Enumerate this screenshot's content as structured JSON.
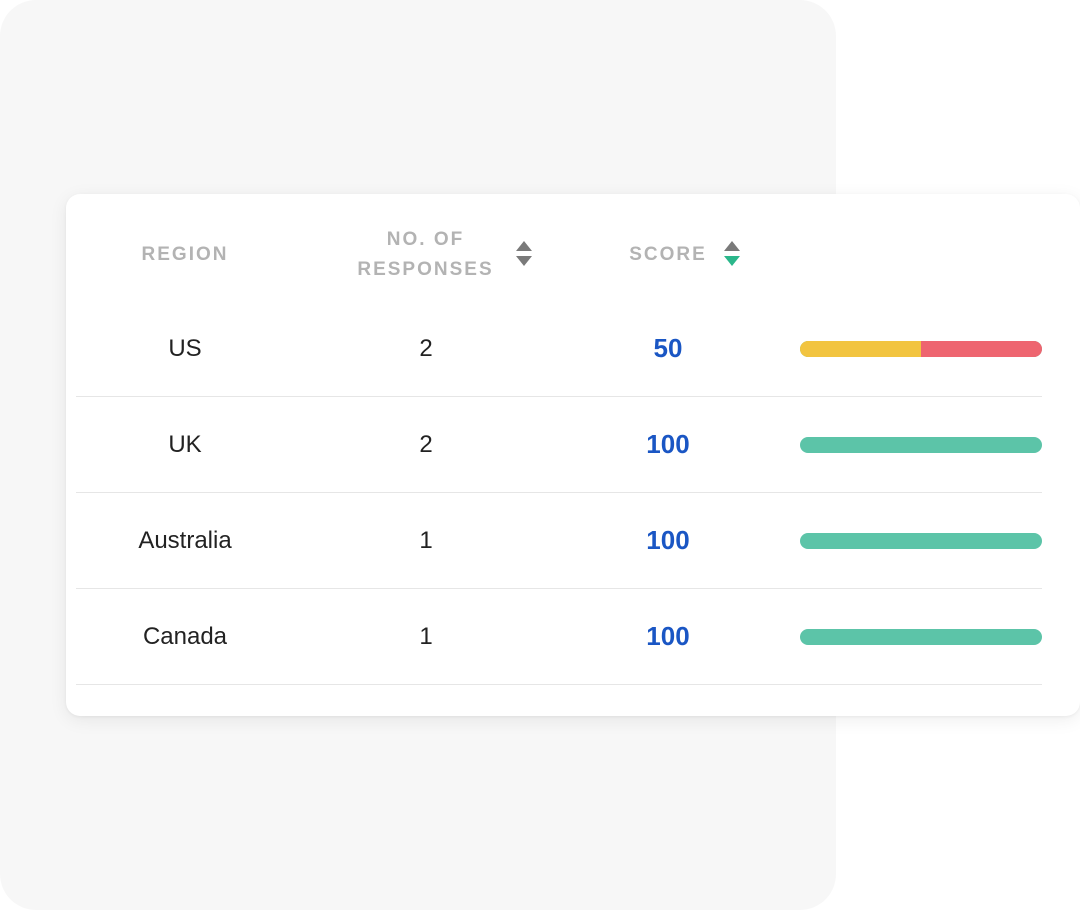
{
  "colors": {
    "score_text": "#1a56c4",
    "positive": "#5cc4a8",
    "neutral": "#f2c440",
    "negative": "#ee6570",
    "sort_active": "#2bb78b"
  },
  "table": {
    "columns": {
      "region": "REGION",
      "responses_line1": "NO. OF",
      "responses_line2": "RESPONSES",
      "score": "SCORE"
    },
    "sort": {
      "responses_icon": "sort-icon",
      "score_icon": "sort-descending-icon"
    },
    "rows": [
      {
        "region": "US",
        "responses": "2",
        "score": "50",
        "breakdown": {
          "neutral": 0.5,
          "negative": 0.5,
          "positive": 0
        }
      },
      {
        "region": "UK",
        "responses": "2",
        "score": "100",
        "breakdown": {
          "neutral": 0,
          "negative": 0,
          "positive": 1
        }
      },
      {
        "region": "Australia",
        "responses": "1",
        "score": "100",
        "breakdown": {
          "neutral": 0,
          "negative": 0,
          "positive": 1
        }
      },
      {
        "region": "Canada",
        "responses": "1",
        "score": "100",
        "breakdown": {
          "neutral": 0,
          "negative": 0,
          "positive": 1
        }
      }
    ]
  }
}
